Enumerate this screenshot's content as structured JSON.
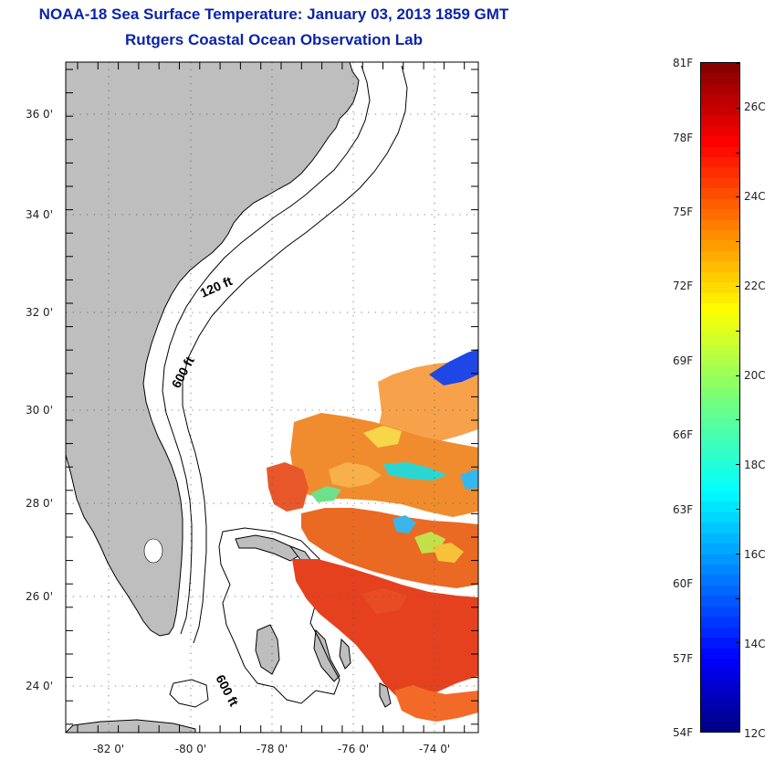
{
  "header": {
    "title": "NOAA-18 Sea Surface Temperature:  January 03, 2013 1859 GMT",
    "subtitle": "Rutgers Coastal Ocean Observation Lab"
  },
  "map": {
    "lat_labels": [
      "36 0'",
      "34 0'",
      "32 0'",
      "30 0'",
      "28 0'",
      "26 0'",
      "24 0'"
    ],
    "lon_labels": [
      "-82 0'",
      "-80 0'",
      "-78 0'",
      "-76 0'",
      "-74 0'"
    ],
    "contour_labels": [
      "120 ft",
      "600 ft",
      "600 ft"
    ],
    "land_color": "#bebebe",
    "grid": "dotted"
  },
  "colorbar": {
    "fahrenheit_labels": [
      "81F",
      "78F",
      "75F",
      "72F",
      "69F",
      "66F",
      "63F",
      "60F",
      "57F",
      "54F"
    ],
    "celsius_labels": [
      "26C",
      "24C",
      "22C",
      "20C",
      "18C",
      "16C",
      "14C",
      "12C"
    ],
    "scale": "jet",
    "range_f": [
      54,
      81
    ],
    "range_c": [
      12,
      27
    ]
  }
}
